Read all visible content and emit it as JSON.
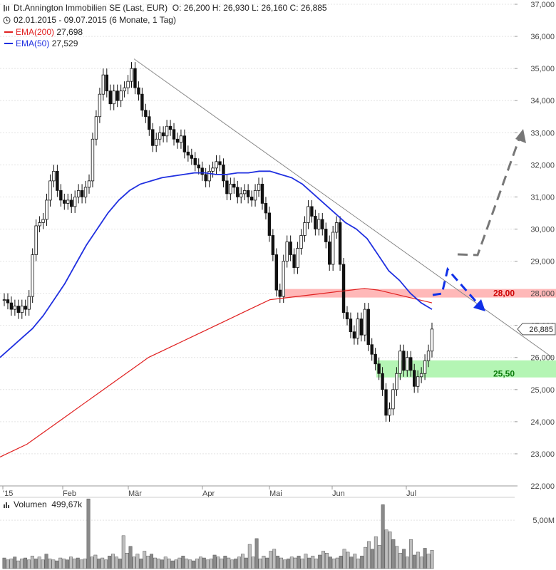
{
  "header": {
    "title": "Dt.Annington Immobilien SE (Last, EUR)",
    "ohlc": "O: 26,200  H: 26,930  L: 26,160  C: 26,885",
    "range": "02.01.2015 - 09.07.2015 (6 Monate, 1 Tag)",
    "ema200_label": "EMA(200)",
    "ema200_value": "27,698",
    "ema50_label": "EMA(50)",
    "ema50_value": "27,529"
  },
  "colors": {
    "ema200": "#e02020",
    "ema50": "#2030e0",
    "candle": "#111111",
    "resistance": "#ffb8b8",
    "support": "#b4f5b4",
    "arrow_up": "#777777",
    "arrow_down": "#1030e8",
    "trend": "#8a8a8a"
  },
  "volume": {
    "label": "Volumen",
    "value": "499,67k",
    "tick": "5,00M"
  },
  "chart_data": {
    "type": "candlestick",
    "ylim": [
      22000,
      37000
    ],
    "y_ticks": [
      "22,000",
      "23,000",
      "24,000",
      "25,000",
      "26,000",
      "27,000",
      "28,000",
      "29,000",
      "30,000",
      "31,000",
      "32,000",
      "33,000",
      "34,000",
      "35,000",
      "36,000",
      "37,000"
    ],
    "x_ticks": [
      "'15",
      "Feb",
      "Mär",
      "Apr",
      "Mai",
      "Jun",
      "Jul"
    ],
    "last_price_label": "26,885",
    "last_price": 26.885,
    "close_series": [
      27.8,
      27.7,
      27.5,
      27.6,
      27.4,
      27.6,
      27.5,
      27.9,
      29.2,
      30.1,
      30.2,
      30.3,
      30.9,
      31.5,
      31.8,
      31.2,
      30.9,
      30.8,
      30.9,
      30.7,
      31.0,
      31.2,
      31.0,
      31.3,
      31.5,
      32.8,
      33.5,
      34.2,
      34.8,
      34.3,
      33.9,
      34.3,
      34.0,
      34.3,
      34.4,
      34.6,
      35.0,
      34.4,
      34.2,
      33.7,
      33.5,
      33.1,
      32.6,
      32.8,
      33.0,
      32.9,
      33.2,
      33.1,
      32.8,
      32.7,
      32.9,
      32.4,
      32.3,
      32.2,
      32.0,
      31.9,
      31.7,
      31.5,
      31.8,
      31.9,
      32.1,
      32.0,
      31.5,
      31.1,
      31.4,
      31.3,
      31.0,
      31.1,
      31.2,
      31.0,
      30.9,
      31.2,
      31.4,
      30.8,
      30.5,
      29.8,
      29.2,
      28.1,
      27.9,
      29.0,
      29.6,
      29.2,
      28.8,
      29.4,
      29.8,
      30.2,
      30.7,
      30.4,
      30.0,
      30.3,
      30.0,
      29.6,
      28.9,
      29.9,
      30.2,
      28.9,
      27.4,
      27.2,
      26.8,
      26.6,
      27.2,
      26.7,
      27.5,
      26.4,
      26.1,
      25.8,
      25.5,
      25.0,
      24.2,
      24.4,
      25.0,
      25.5,
      26.2,
      25.6,
      26.0,
      25.6,
      25.1,
      25.4,
      25.5,
      25.9,
      26.2,
      26.885
    ],
    "ema50_series": [
      26.0,
      26.3,
      26.6,
      26.9,
      27.3,
      27.8,
      28.3,
      28.9,
      29.5,
      30.0,
      30.5,
      30.9,
      31.2,
      31.4,
      31.5,
      31.6,
      31.65,
      31.7,
      31.75,
      31.75,
      31.7,
      31.7,
      31.75,
      31.75,
      31.8,
      31.8,
      31.7,
      31.6,
      31.4,
      31.1,
      30.8,
      30.5,
      30.2,
      30.0,
      29.7,
      29.2,
      28.7,
      28.4,
      28.0,
      27.7,
      27.5
    ],
    "ema200_series": [
      22.9,
      23.1,
      23.3,
      23.6,
      23.9,
      24.2,
      24.5,
      24.8,
      25.1,
      25.4,
      25.7,
      26.0,
      26.2,
      26.4,
      26.6,
      26.8,
      27.0,
      27.2,
      27.4,
      27.6,
      27.8,
      27.85,
      27.9,
      27.95,
      28.0,
      28.05,
      28.1,
      28.15,
      28.1,
      28.0,
      27.9,
      27.8,
      27.7
    ],
    "volume_series": [
      1.1,
      0.9,
      1.0,
      1.2,
      0.8,
      1.0,
      1.1,
      0.9,
      1.3,
      1.0,
      1.2,
      0.9,
      1.5,
      1.0,
      0.9,
      0.8,
      1.1,
      1.0,
      0.9,
      1.2,
      1.0,
      1.1,
      0.9,
      1.0,
      7.2,
      1.2,
      1.4,
      1.0,
      1.1,
      0.9,
      1.3,
      1.5,
      1.2,
      1.0,
      3.4,
      1.6,
      2.3,
      1.2,
      1.5,
      1.0,
      1.8,
      1.3,
      1.5,
      1.1,
      1.0,
      0.9,
      1.2,
      1.0,
      0.8,
      0.9,
      1.1,
      1.3,
      1.0,
      0.9,
      0.8,
      1.0,
      1.2,
      1.1,
      0.9,
      1.0,
      1.4,
      1.2,
      1.0,
      1.3,
      1.1,
      0.9,
      1.0,
      1.2,
      1.5,
      1.1,
      2.5,
      1.2,
      3.1,
      1.0,
      1.3,
      1.1,
      1.8,
      2.0,
      1.3,
      1.1,
      0.9,
      1.0,
      1.2,
      1.1,
      1.3,
      1.0,
      1.5,
      1.1,
      1.3,
      1.0,
      1.4,
      1.8,
      1.6,
      1.2,
      1.0,
      1.1,
      1.3,
      2.0,
      1.7,
      1.2,
      1.5,
      1.0,
      1.3,
      2.2,
      2.8,
      2.0,
      3.3,
      2.4,
      6.6,
      4.0,
      3.8,
      3.0,
      2.3,
      1.6,
      2.0,
      1.2,
      3.0,
      1.4,
      1.7,
      1.2,
      2.1,
      1.5,
      1.9
    ],
    "levels": [
      {
        "label": "28,00",
        "value": 28.0
      },
      {
        "label": "25,50",
        "value": 25.5
      }
    ],
    "trendline": {
      "from": [
        35.3
      ],
      "to": [
        26.0
      ]
    }
  }
}
